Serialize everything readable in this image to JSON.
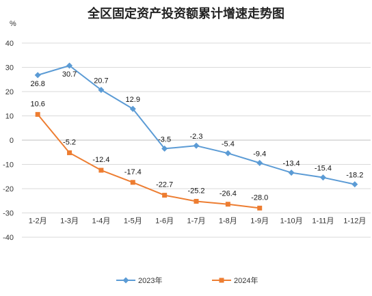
{
  "chart_data": {
    "type": "line",
    "title": "全区固定资产投资额累计增速走势图",
    "ylabel": "%",
    "xlabel": "",
    "ylim": [
      -40,
      40
    ],
    "yticks": [
      40,
      30,
      20,
      10,
      0,
      -10,
      -20,
      -30,
      -40
    ],
    "grid": true,
    "legend_position": "bottom",
    "categories": [
      "1-2月",
      "1-3月",
      "1-4月",
      "1-5月",
      "1-6月",
      "1-7月",
      "1-8月",
      "1-9月",
      "1-10月",
      "1-11月",
      "1-12月"
    ],
    "series": [
      {
        "name": "2023年",
        "color": "#5B9BD5",
        "marker": "diamond",
        "values": [
          26.8,
          30.7,
          20.7,
          12.9,
          -3.5,
          -2.3,
          -5.4,
          -9.4,
          -13.4,
          -15.4,
          -18.2
        ]
      },
      {
        "name": "2024年",
        "color": "#ED7D31",
        "marker": "square",
        "values": [
          10.6,
          -5.2,
          -12.4,
          -17.4,
          -22.7,
          -25.2,
          -26.4,
          -28.0,
          null,
          null,
          null
        ]
      }
    ]
  }
}
